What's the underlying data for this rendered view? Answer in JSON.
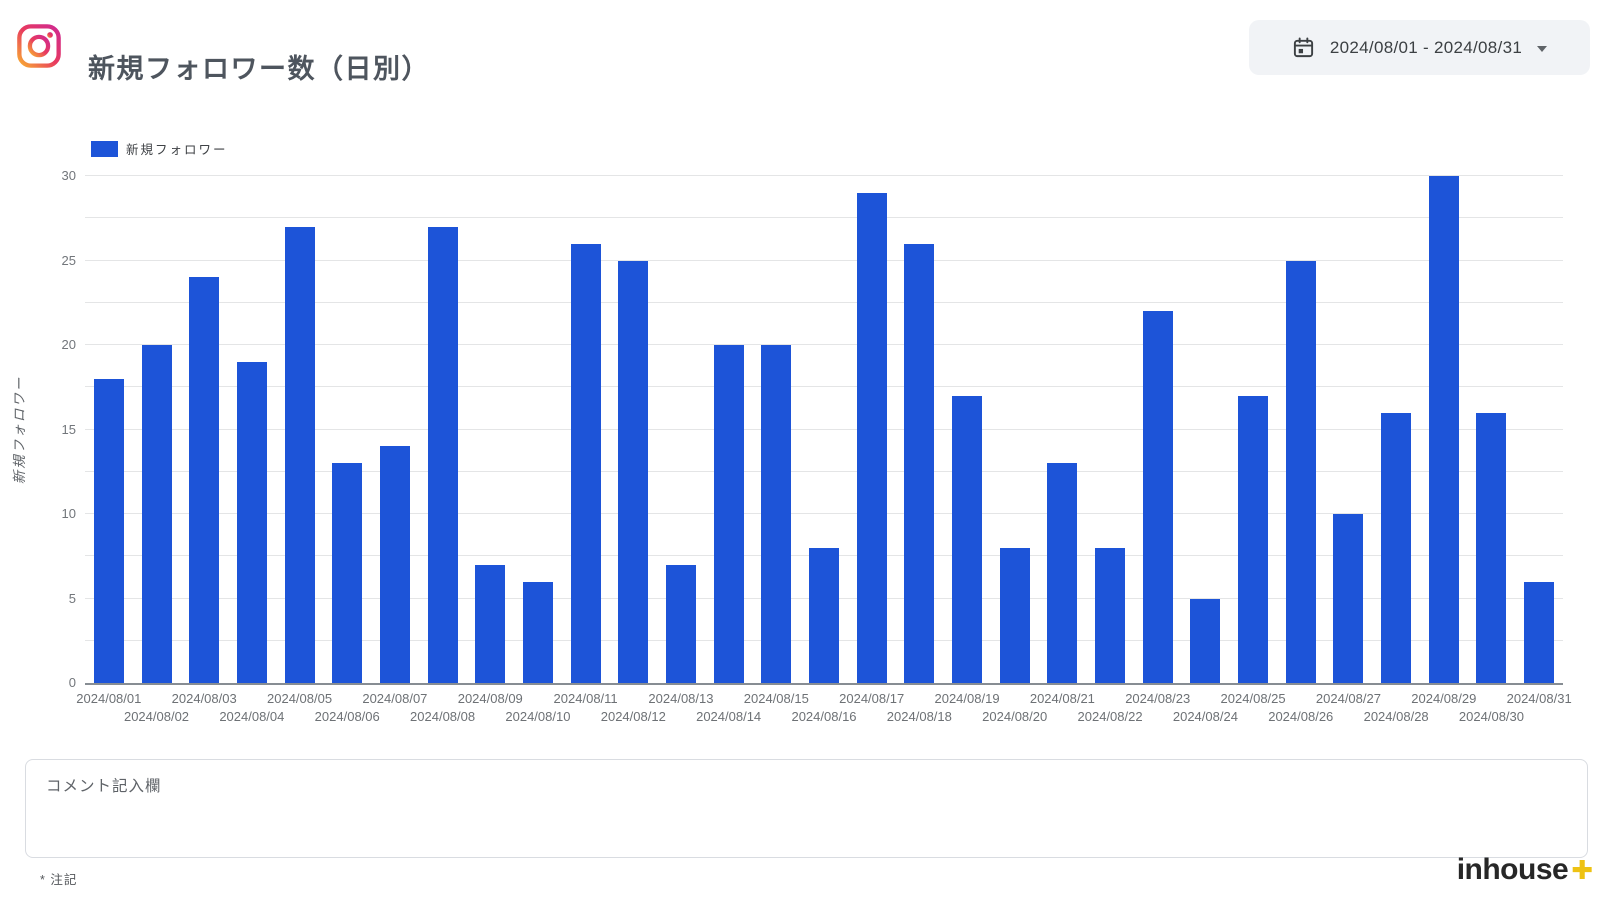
{
  "header": {
    "title": "新規フォロワー数（日別）",
    "date_range": "2024/08/01 - 2024/08/31"
  },
  "chart_data": {
    "type": "bar",
    "title": "新規フォロワー数（日別）",
    "legend": [
      "新規フォロワー"
    ],
    "ylabel": "新規フォロワー",
    "xlabel": "",
    "ylim": [
      0,
      30
    ],
    "yticks": [
      0,
      5,
      10,
      15,
      20,
      25,
      30
    ],
    "minor_grid_step": 2.5,
    "grid": "on",
    "legend_position": "top-left",
    "color": "#1d54d8",
    "categories": [
      "2024/08/01",
      "2024/08/02",
      "2024/08/03",
      "2024/08/04",
      "2024/08/05",
      "2024/08/06",
      "2024/08/07",
      "2024/08/08",
      "2024/08/09",
      "2024/08/10",
      "2024/08/11",
      "2024/08/12",
      "2024/08/13",
      "2024/08/14",
      "2024/08/15",
      "2024/08/16",
      "2024/08/17",
      "2024/08/18",
      "2024/08/19",
      "2024/08/20",
      "2024/08/21",
      "2024/08/22",
      "2024/08/23",
      "2024/08/24",
      "2024/08/25",
      "2024/08/26",
      "2024/08/27",
      "2024/08/28",
      "2024/08/29",
      "2024/08/30",
      "2024/08/31"
    ],
    "values": [
      18,
      20,
      24,
      19,
      27,
      13,
      14,
      27,
      7,
      6,
      26,
      25,
      7,
      20,
      20,
      8,
      29,
      26,
      17,
      8,
      13,
      8,
      22,
      5,
      17,
      25,
      10,
      16,
      30,
      16,
      6
    ]
  },
  "comment": {
    "placeholder": "コメント記入欄"
  },
  "footer": {
    "note": "* 注記",
    "brand": "inhouse",
    "brand_plus": "✚"
  }
}
